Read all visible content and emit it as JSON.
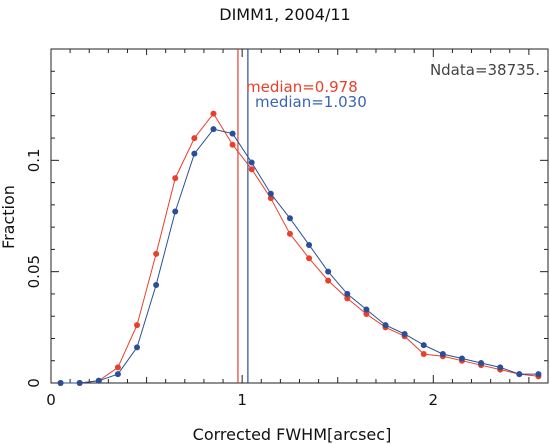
{
  "chart_data": {
    "type": "line",
    "title": "DIMM1, 2004/11",
    "xlabel": "Corrected FWHM[arcsec]",
    "ylabel": "Fraction",
    "xlim": [
      0,
      2.6
    ],
    "ylim": [
      0,
      0.15
    ],
    "xticks": [
      0,
      1,
      2
    ],
    "xtick_labels": [
      "0",
      "1",
      "2"
    ],
    "yticks": [
      0,
      0.05,
      0.1
    ],
    "ytick_labels": [
      "0",
      "0.05",
      "0.1"
    ],
    "grid": false,
    "annotations": {
      "ndata": "Ndata=38735.",
      "median_red": "median=0.978",
      "median_blue": "median=1.030"
    },
    "medians": [
      {
        "value": 0.978,
        "color": "#e8402a"
      },
      {
        "value": 1.03,
        "color": "#2a4f9a"
      }
    ],
    "series": [
      {
        "color": "#e8402a",
        "x": [
          0.05,
          0.15,
          0.25,
          0.35,
          0.45,
          0.55,
          0.65,
          0.75,
          0.85,
          0.95,
          1.05,
          1.15,
          1.25,
          1.35,
          1.45,
          1.55,
          1.65,
          1.75,
          1.85,
          1.95,
          2.05,
          2.15,
          2.25,
          2.35,
          2.45,
          2.55
        ],
        "values": [
          0.0,
          0.0,
          0.001,
          0.007,
          0.026,
          0.058,
          0.092,
          0.11,
          0.121,
          0.107,
          0.096,
          0.083,
          0.067,
          0.056,
          0.046,
          0.038,
          0.031,
          0.025,
          0.021,
          0.013,
          0.012,
          0.01,
          0.008,
          0.006,
          0.004,
          0.003
        ]
      },
      {
        "color": "#2a4f9a",
        "x": [
          0.05,
          0.15,
          0.25,
          0.35,
          0.45,
          0.55,
          0.65,
          0.75,
          0.85,
          0.95,
          1.05,
          1.15,
          1.25,
          1.35,
          1.45,
          1.55,
          1.65,
          1.75,
          1.85,
          1.95,
          2.05,
          2.15,
          2.25,
          2.35,
          2.45,
          2.55
        ],
        "values": [
          0.0,
          0.0,
          0.001,
          0.004,
          0.016,
          0.044,
          0.077,
          0.103,
          0.114,
          0.112,
          0.099,
          0.085,
          0.074,
          0.062,
          0.05,
          0.04,
          0.033,
          0.026,
          0.022,
          0.017,
          0.013,
          0.011,
          0.009,
          0.007,
          0.004,
          0.004
        ]
      }
    ]
  }
}
